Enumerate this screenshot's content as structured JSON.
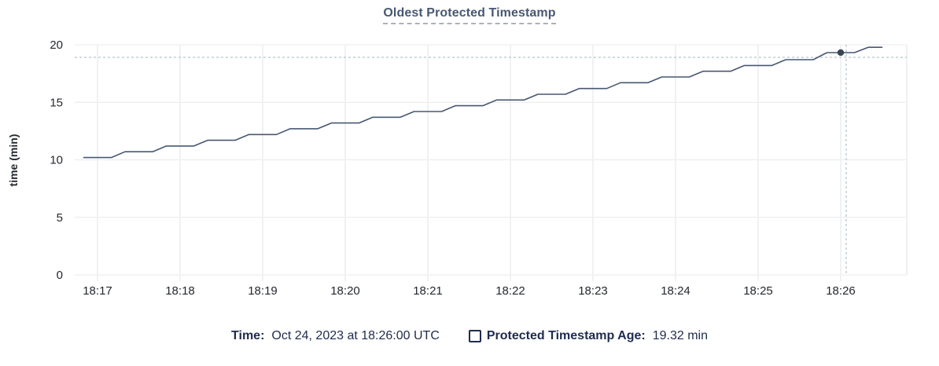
{
  "legend": {
    "time_label": "Time:",
    "time_value": "Oct 24, 2023 at 18:26:00 UTC",
    "series_label": "Protected Timestamp Age:",
    "series_value": "19.32 min"
  },
  "colors": {
    "line": "#475872",
    "hover_dot": "#394455",
    "crosshair": "#a6b6bf",
    "h_gridline": "#e8e9eb",
    "v_gridline": "#f0f1f3",
    "axis_text": "#24282f",
    "title_text": "#475872",
    "legend_text": "#1f2c4e"
  },
  "chart_data": {
    "type": "line",
    "title": "Oldest Protected Timestamp",
    "xlabel": "",
    "ylabel": "time (min)",
    "ylim": [
      0,
      20
    ],
    "yticks": [
      0,
      5,
      10,
      15,
      20
    ],
    "grid": true,
    "legend_position": "bottom",
    "xticks": [
      {
        "label": "18:17",
        "t": 0
      },
      {
        "label": "18:18",
        "t": 60
      },
      {
        "label": "18:19",
        "t": 120
      },
      {
        "label": "18:20",
        "t": 180
      },
      {
        "label": "18:21",
        "t": 240
      },
      {
        "label": "18:22",
        "t": 300
      },
      {
        "label": "18:23",
        "t": 360
      },
      {
        "label": "18:24",
        "t": 420
      },
      {
        "label": "18:25",
        "t": 480
      },
      {
        "label": "18:26",
        "t": 540
      }
    ],
    "x_unit": "seconds after 18:17:00 UTC, Oct 24 2023",
    "series": [
      {
        "name": "Protected Timestamp Age",
        "unit": "min",
        "points": [
          [
            -10,
            10.2
          ],
          [
            0,
            10.2
          ],
          [
            10,
            10.2
          ],
          [
            20,
            10.7
          ],
          [
            30,
            10.7
          ],
          [
            40,
            10.7
          ],
          [
            50,
            11.2
          ],
          [
            60,
            11.2
          ],
          [
            70,
            11.2
          ],
          [
            80,
            11.7
          ],
          [
            90,
            11.7
          ],
          [
            100,
            11.7
          ],
          [
            110,
            12.2
          ],
          [
            120,
            12.2
          ],
          [
            130,
            12.2
          ],
          [
            140,
            12.7
          ],
          [
            150,
            12.7
          ],
          [
            160,
            12.7
          ],
          [
            170,
            13.2
          ],
          [
            180,
            13.2
          ],
          [
            190,
            13.2
          ],
          [
            200,
            13.7
          ],
          [
            210,
            13.7
          ],
          [
            220,
            13.7
          ],
          [
            230,
            14.2
          ],
          [
            240,
            14.2
          ],
          [
            250,
            14.2
          ],
          [
            260,
            14.7
          ],
          [
            270,
            14.7
          ],
          [
            280,
            14.7
          ],
          [
            290,
            15.2
          ],
          [
            300,
            15.2
          ],
          [
            310,
            15.2
          ],
          [
            320,
            15.7
          ],
          [
            330,
            15.7
          ],
          [
            340,
            15.7
          ],
          [
            350,
            16.2
          ],
          [
            360,
            16.2
          ],
          [
            370,
            16.2
          ],
          [
            380,
            16.7
          ],
          [
            390,
            16.7
          ],
          [
            400,
            16.7
          ],
          [
            410,
            17.2
          ],
          [
            420,
            17.2
          ],
          [
            430,
            17.2
          ],
          [
            440,
            17.7
          ],
          [
            450,
            17.7
          ],
          [
            460,
            17.7
          ],
          [
            470,
            18.2
          ],
          [
            480,
            18.2
          ],
          [
            490,
            18.2
          ],
          [
            500,
            18.7
          ],
          [
            510,
            18.7
          ],
          [
            520,
            18.7
          ],
          [
            530,
            19.32
          ],
          [
            540,
            19.32
          ],
          [
            550,
            19.32
          ],
          [
            560,
            19.78
          ],
          [
            570,
            19.78
          ]
        ]
      }
    ],
    "highlight_point": {
      "t": 540,
      "v": 19.32,
      "time": "18:26:00",
      "label": "19.32 min"
    },
    "crosshair": {
      "t": 544,
      "v": 18.91
    }
  }
}
